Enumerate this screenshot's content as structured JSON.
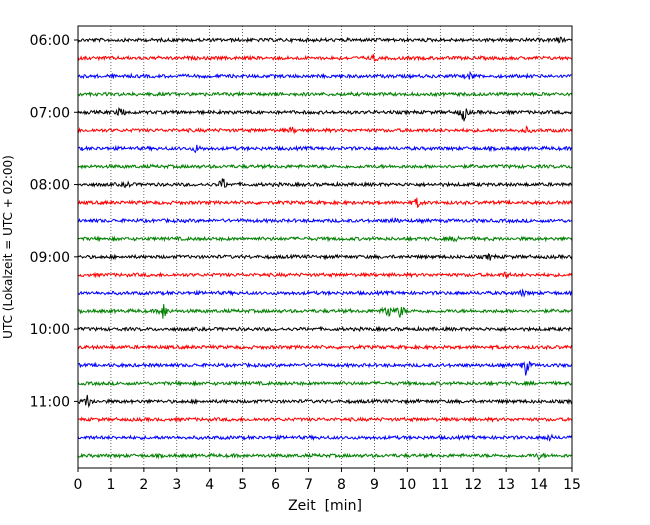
{
  "chart_data": {
    "type": "line",
    "title": "",
    "xlabel": "Zeit  [min]",
    "ylabel": "UTC (Lokalzeit = UTC + 02:00)",
    "xlim": [
      0,
      15
    ],
    "x_ticks": [
      "0",
      "1",
      "2",
      "3",
      "4",
      "5",
      "6",
      "7",
      "8",
      "9",
      "10",
      "11",
      "12",
      "13",
      "14",
      "15"
    ],
    "y_ticks": [
      "06:00",
      "07:00",
      "08:00",
      "09:00",
      "10:00",
      "11:00"
    ],
    "grid": "vertical-dotted",
    "traces": [
      {
        "start": "06:00",
        "color": "#000000",
        "events": [
          [
            14.6,
            3
          ]
        ]
      },
      {
        "start": "06:15",
        "color": "#ff0000",
        "events": [
          [
            9.0,
            3
          ]
        ]
      },
      {
        "start": "06:30",
        "color": "#0000ff",
        "events": [
          [
            11.9,
            3
          ]
        ]
      },
      {
        "start": "06:45",
        "color": "#008000",
        "events": []
      },
      {
        "start": "07:00",
        "color": "#000000",
        "events": [
          [
            1.3,
            6
          ],
          [
            11.7,
            10
          ]
        ]
      },
      {
        "start": "07:15",
        "color": "#ff0000",
        "events": [
          [
            6.5,
            3
          ],
          [
            13.6,
            3
          ]
        ]
      },
      {
        "start": "07:30",
        "color": "#0000ff",
        "events": [
          [
            3.6,
            4
          ]
        ]
      },
      {
        "start": "07:45",
        "color": "#008000",
        "events": []
      },
      {
        "start": "08:00",
        "color": "#000000",
        "events": [
          [
            1.5,
            3
          ],
          [
            4.4,
            7
          ]
        ]
      },
      {
        "start": "08:15",
        "color": "#ff0000",
        "events": [
          [
            10.3,
            5
          ]
        ]
      },
      {
        "start": "08:30",
        "color": "#0000ff",
        "events": [
          [
            9.6,
            3
          ]
        ]
      },
      {
        "start": "08:45",
        "color": "#008000",
        "events": [
          [
            11.5,
            3
          ]
        ]
      },
      {
        "start": "09:00",
        "color": "#000000",
        "events": [
          [
            12.5,
            3
          ]
        ]
      },
      {
        "start": "09:15",
        "color": "#ff0000",
        "events": [
          [
            13.0,
            3
          ]
        ]
      },
      {
        "start": "09:30",
        "color": "#0000ff",
        "events": [
          [
            13.5,
            3
          ]
        ]
      },
      {
        "start": "09:45",
        "color": "#008000",
        "events": [
          [
            2.6,
            10
          ],
          [
            9.4,
            10
          ],
          [
            9.8,
            8
          ]
        ]
      },
      {
        "start": "10:00",
        "color": "#000000",
        "events": []
      },
      {
        "start": "10:15",
        "color": "#ff0000",
        "events": []
      },
      {
        "start": "10:30",
        "color": "#0000ff",
        "events": [
          [
            13.6,
            10
          ]
        ]
      },
      {
        "start": "10:45",
        "color": "#008000",
        "events": []
      },
      {
        "start": "11:00",
        "color": "#000000",
        "events": [
          [
            0.3,
            8
          ]
        ]
      },
      {
        "start": "11:15",
        "color": "#ff0000",
        "events": []
      },
      {
        "start": "11:30",
        "color": "#0000ff",
        "events": [
          [
            14.3,
            3
          ]
        ]
      },
      {
        "start": "11:45",
        "color": "#008000",
        "events": [
          [
            14.0,
            3
          ]
        ]
      }
    ]
  }
}
